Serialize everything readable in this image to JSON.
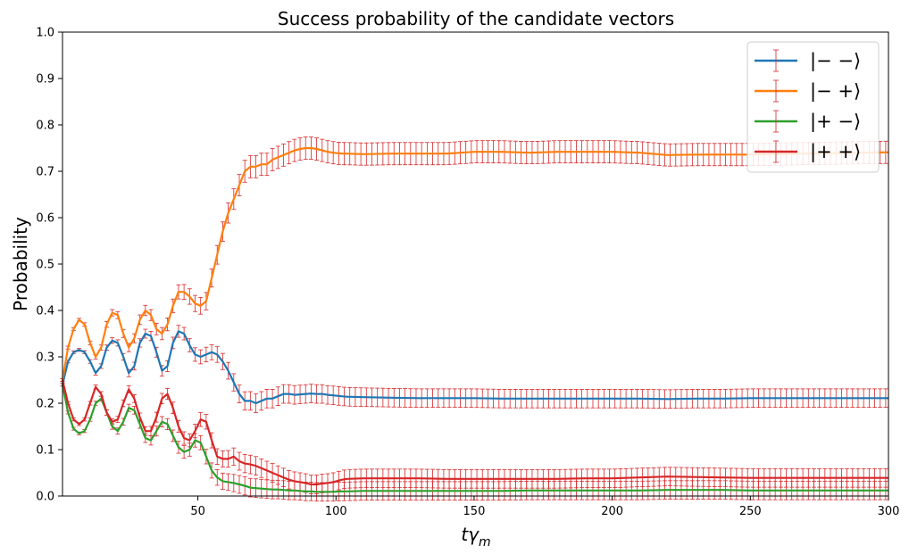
{
  "chart_data": {
    "type": "line",
    "title": "Success probability of the candidate vectors",
    "xlabel": "tγm",
    "xlabel_main": "tγ",
    "xlabel_sub": "m",
    "ylabel": "Probability",
    "xlim": [
      1,
      300
    ],
    "ylim": [
      0,
      1.0
    ],
    "xticks": [
      50,
      100,
      150,
      200,
      250,
      300
    ],
    "yticks": [
      0.0,
      0.1,
      0.2,
      0.3,
      0.4,
      0.5,
      0.6,
      0.7,
      0.8,
      0.9,
      1.0
    ],
    "grid": false,
    "legend_position": "top-right",
    "errorbar_color": "#d62728",
    "series": [
      {
        "name": "|− −⟩",
        "color": "#1f77b4",
        "x": [
          1,
          3,
          5,
          7,
          9,
          11,
          13,
          15,
          17,
          19,
          21,
          23,
          25,
          27,
          29,
          31,
          33,
          35,
          37,
          39,
          41,
          43,
          45,
          47,
          49,
          51,
          53,
          55,
          57,
          59,
          61,
          63,
          65,
          67,
          69,
          71,
          73,
          75,
          77,
          79,
          81,
          83,
          85,
          87,
          89,
          91,
          93,
          95,
          97,
          99,
          102,
          104,
          110,
          120,
          130,
          140,
          150,
          160,
          170,
          180,
          190,
          200,
          210,
          220,
          230,
          240,
          250,
          260,
          270,
          280,
          290,
          300
        ],
        "values": [
          0.24,
          0.29,
          0.31,
          0.315,
          0.31,
          0.29,
          0.265,
          0.28,
          0.32,
          0.335,
          0.33,
          0.3,
          0.265,
          0.28,
          0.33,
          0.35,
          0.345,
          0.31,
          0.27,
          0.28,
          0.33,
          0.355,
          0.35,
          0.325,
          0.305,
          0.3,
          0.305,
          0.31,
          0.305,
          0.29,
          0.27,
          0.245,
          0.22,
          0.205,
          0.205,
          0.2,
          0.205,
          0.21,
          0.21,
          0.215,
          0.22,
          0.22,
          0.218,
          0.219,
          0.22,
          0.221,
          0.22,
          0.22,
          0.218,
          0.217,
          0.215,
          0.214,
          0.213,
          0.212,
          0.211,
          0.211,
          0.211,
          0.21,
          0.21,
          0.21,
          0.21,
          0.21,
          0.21,
          0.209,
          0.21,
          0.21,
          0.211,
          0.211,
          0.211,
          0.211,
          0.211,
          0.211
        ]
      },
      {
        "name": "|− +⟩",
        "color": "#ff7f0e",
        "x": [
          1,
          3,
          5,
          7,
          9,
          11,
          13,
          15,
          17,
          19,
          21,
          23,
          25,
          27,
          29,
          31,
          33,
          35,
          37,
          39,
          41,
          43,
          45,
          47,
          49,
          51,
          53,
          55,
          57,
          59,
          61,
          63,
          65,
          67,
          69,
          71,
          73,
          75,
          77,
          79,
          81,
          83,
          85,
          87,
          89,
          91,
          93,
          95,
          97,
          99,
          102,
          104,
          110,
          120,
          130,
          140,
          150,
          160,
          170,
          180,
          190,
          200,
          210,
          220,
          230,
          240,
          250,
          260,
          270,
          280,
          290,
          300
        ],
        "values": [
          0.25,
          0.32,
          0.36,
          0.38,
          0.37,
          0.33,
          0.3,
          0.32,
          0.37,
          0.395,
          0.39,
          0.35,
          0.32,
          0.34,
          0.38,
          0.4,
          0.39,
          0.36,
          0.35,
          0.37,
          0.41,
          0.44,
          0.44,
          0.43,
          0.415,
          0.41,
          0.42,
          0.47,
          0.52,
          0.57,
          0.61,
          0.64,
          0.67,
          0.7,
          0.71,
          0.71,
          0.715,
          0.715,
          0.725,
          0.73,
          0.735,
          0.74,
          0.745,
          0.748,
          0.75,
          0.75,
          0.748,
          0.745,
          0.742,
          0.74,
          0.738,
          0.738,
          0.737,
          0.738,
          0.738,
          0.738,
          0.742,
          0.742,
          0.74,
          0.742,
          0.742,
          0.742,
          0.74,
          0.735,
          0.736,
          0.736,
          0.736,
          0.737,
          0.738,
          0.739,
          0.74,
          0.741
        ]
      },
      {
        "name": "|+ −⟩",
        "color": "#2ca02c",
        "x": [
          1,
          3,
          5,
          7,
          9,
          11,
          13,
          15,
          17,
          19,
          21,
          23,
          25,
          27,
          29,
          31,
          33,
          35,
          37,
          39,
          41,
          43,
          45,
          47,
          49,
          51,
          53,
          55,
          57,
          59,
          61,
          63,
          65,
          67,
          69,
          71,
          73,
          75,
          77,
          79,
          81,
          83,
          85,
          87,
          89,
          91,
          93,
          95,
          97,
          99,
          102,
          104,
          110,
          120,
          130,
          140,
          150,
          160,
          170,
          180,
          190,
          200,
          210,
          220,
          230,
          240,
          250,
          260,
          270,
          280,
          290,
          300
        ],
        "values": [
          0.24,
          0.18,
          0.145,
          0.135,
          0.14,
          0.165,
          0.2,
          0.21,
          0.18,
          0.15,
          0.14,
          0.16,
          0.19,
          0.185,
          0.155,
          0.125,
          0.12,
          0.14,
          0.16,
          0.155,
          0.13,
          0.105,
          0.095,
          0.1,
          0.12,
          0.115,
          0.085,
          0.055,
          0.04,
          0.032,
          0.03,
          0.028,
          0.025,
          0.022,
          0.018,
          0.017,
          0.016,
          0.015,
          0.014,
          0.014,
          0.013,
          0.012,
          0.012,
          0.011,
          0.01,
          0.01,
          0.009,
          0.009,
          0.009,
          0.009,
          0.01,
          0.01,
          0.011,
          0.011,
          0.011,
          0.011,
          0.011,
          0.011,
          0.012,
          0.012,
          0.012,
          0.012,
          0.012,
          0.013,
          0.013,
          0.013,
          0.012,
          0.012,
          0.012,
          0.012,
          0.012,
          0.012
        ]
      },
      {
        "name": "|+ +⟩",
        "color": "#d62728",
        "x": [
          1,
          3,
          5,
          7,
          9,
          11,
          13,
          15,
          17,
          19,
          21,
          23,
          25,
          27,
          29,
          31,
          33,
          35,
          37,
          39,
          41,
          43,
          45,
          47,
          49,
          51,
          53,
          55,
          57,
          59,
          61,
          63,
          65,
          67,
          69,
          71,
          73,
          75,
          77,
          79,
          81,
          83,
          85,
          87,
          89,
          91,
          93,
          95,
          97,
          99,
          102,
          104,
          110,
          120,
          130,
          140,
          150,
          160,
          170,
          180,
          190,
          200,
          210,
          220,
          230,
          240,
          250,
          260,
          270,
          280,
          290,
          300
        ],
        "values": [
          0.25,
          0.2,
          0.165,
          0.155,
          0.165,
          0.2,
          0.235,
          0.22,
          0.18,
          0.16,
          0.165,
          0.2,
          0.23,
          0.21,
          0.17,
          0.14,
          0.14,
          0.17,
          0.21,
          0.22,
          0.19,
          0.15,
          0.125,
          0.12,
          0.14,
          0.165,
          0.16,
          0.12,
          0.085,
          0.08,
          0.08,
          0.085,
          0.075,
          0.07,
          0.068,
          0.065,
          0.06,
          0.055,
          0.05,
          0.045,
          0.04,
          0.035,
          0.032,
          0.03,
          0.028,
          0.025,
          0.025,
          0.027,
          0.028,
          0.03,
          0.035,
          0.037,
          0.038,
          0.038,
          0.038,
          0.037,
          0.037,
          0.037,
          0.037,
          0.037,
          0.038,
          0.038,
          0.04,
          0.042,
          0.041,
          0.04,
          0.039,
          0.039,
          0.039,
          0.039,
          0.039,
          0.039
        ]
      }
    ]
  }
}
